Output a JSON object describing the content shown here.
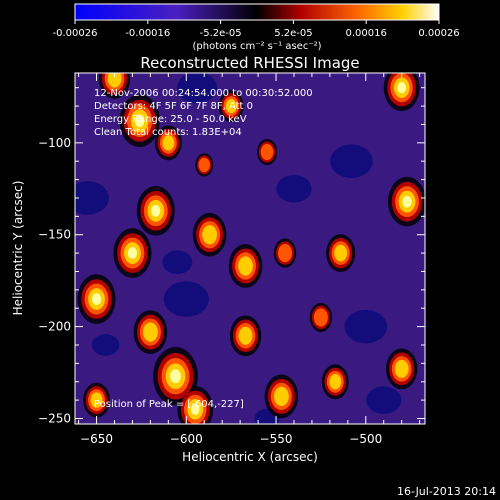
{
  "colorbar": {
    "ticks": [
      "-0.00026",
      "-0.00016",
      "-5.2e-05",
      "5.2e-05",
      "0.00016",
      "0.00026"
    ],
    "range": [
      -0.00026,
      0.00026
    ],
    "units_line": "(photons cm⁻² s⁻¹ asec⁻²)"
  },
  "chart_data": {
    "type": "heatmap",
    "title": "Reconstructed RHESSI Image",
    "xlabel": "Heliocentric X (arcsec)",
    "ylabel": "Heliocentric Y (arcsec)",
    "xlim": [
      -662,
      -467
    ],
    "ylim": [
      -253,
      -62
    ],
    "x_ticks": [
      -650,
      -600,
      -550,
      -500
    ],
    "y_ticks": [
      -100,
      -150,
      -200,
      -250
    ],
    "peak": [
      -604,
      -227
    ],
    "annotations": [
      "12-Nov-2006 00:24:54.000 to 00:30:52.000",
      "Detectors: 4F 5F 6F 7F 8F, Att 0",
      "Energy Range: 25.0 - 50.0 keV",
      "Clean     Total counts: 1.83E+04"
    ],
    "peak_label": "Position of Peak = [-604,-227]",
    "bright_sources": [
      {
        "x": -640,
        "y": -65,
        "level": 0.7
      },
      {
        "x": -626,
        "y": -88,
        "level": 0.9
      },
      {
        "x": -610,
        "y": -100,
        "level": 0.6
      },
      {
        "x": -575,
        "y": -80,
        "level": 0.55
      },
      {
        "x": -480,
        "y": -70,
        "level": 0.8
      },
      {
        "x": -555,
        "y": -105,
        "level": 0.45
      },
      {
        "x": -617,
        "y": -137,
        "level": 0.85
      },
      {
        "x": -630,
        "y": -160,
        "level": 0.85
      },
      {
        "x": -587,
        "y": -150,
        "level": 0.75
      },
      {
        "x": -567,
        "y": -167,
        "level": 0.75
      },
      {
        "x": -545,
        "y": -160,
        "level": 0.5
      },
      {
        "x": -514,
        "y": -160,
        "level": 0.65
      },
      {
        "x": -477,
        "y": -132,
        "level": 0.85
      },
      {
        "x": -650,
        "y": -185,
        "level": 0.85
      },
      {
        "x": -620,
        "y": -203,
        "level": 0.75
      },
      {
        "x": -567,
        "y": -205,
        "level": 0.7
      },
      {
        "x": -525,
        "y": -195,
        "level": 0.5
      },
      {
        "x": -606,
        "y": -227,
        "level": 1.0
      },
      {
        "x": -595,
        "y": -245,
        "level": 0.8
      },
      {
        "x": -547,
        "y": -238,
        "level": 0.75
      },
      {
        "x": -517,
        "y": -230,
        "level": 0.6
      },
      {
        "x": -480,
        "y": -223,
        "level": 0.7
      },
      {
        "x": -650,
        "y": -240,
        "level": 0.6
      },
      {
        "x": -590,
        "y": -112,
        "level": 0.4
      }
    ],
    "dark_sources": [
      {
        "x": -594,
        "y": -70,
        "level": 0.8
      },
      {
        "x": -655,
        "y": -130,
        "level": 0.85
      },
      {
        "x": -600,
        "y": -185,
        "level": 0.9
      },
      {
        "x": -605,
        "y": -165,
        "level": 0.6
      },
      {
        "x": -540,
        "y": -125,
        "level": 0.7
      },
      {
        "x": -508,
        "y": -110,
        "level": 0.85
      },
      {
        "x": -500,
        "y": -200,
        "level": 0.85
      },
      {
        "x": -490,
        "y": -240,
        "level": 0.7
      },
      {
        "x": -645,
        "y": -210,
        "level": 0.55
      },
      {
        "x": -555,
        "y": -250,
        "level": 0.5
      }
    ]
  },
  "footer": "16-Jul-2013 20:14"
}
